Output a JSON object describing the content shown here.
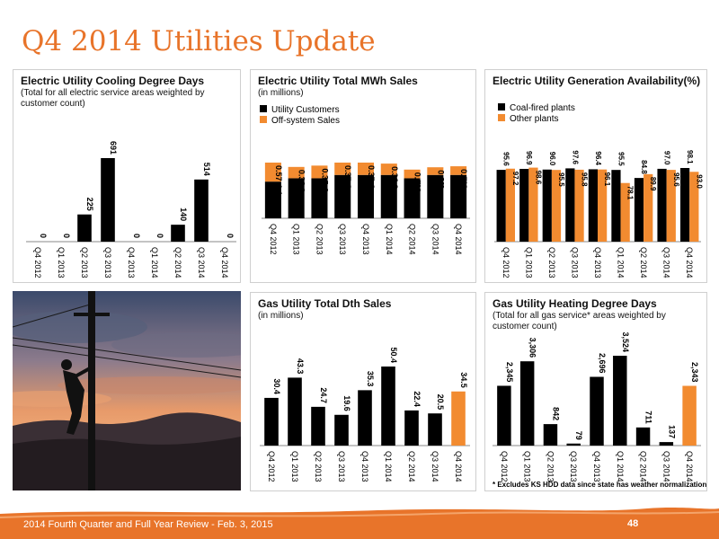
{
  "title": "Q4 2014 Utilities Update",
  "footer": {
    "text": "2014 Fourth Quarter and Full Year Review - Feb. 3, 2015",
    "page_number": "48"
  },
  "colors": {
    "accent": "#E8742A",
    "black": "#000000",
    "orange": "#F28B30"
  },
  "charts": {
    "cooling": {
      "title": "Electric Utility Cooling Degree Days",
      "subtitle": "(Total for all electric service areas weighted by customer count)"
    },
    "mwh": {
      "title": "Electric Utility Total MWh Sales",
      "subtitle": "(in millions)"
    },
    "gen": {
      "title": "Electric Utility Generation Availability(%)",
      "subtitle": ""
    },
    "dth": {
      "title": "Gas Utility Total Dth Sales",
      "subtitle": "(in millions)"
    },
    "hdd": {
      "title": "Gas Utility Heating Degree Days",
      "subtitle": "(Total for all gas service* areas weighted by customer count)",
      "footnote": "* Excludes KS HDD data since state has weather normalization"
    }
  },
  "chart_data": [
    {
      "id": "cooling",
      "type": "bar",
      "categories": [
        "Q4 2012",
        "Q1 2013",
        "Q2 2013",
        "Q3 2013",
        "Q4 2013",
        "Q1 2014",
        "Q2 2014",
        "Q3 2014",
        "Q4 2014"
      ],
      "values": [
        0,
        0,
        225,
        691,
        0,
        0,
        140,
        514,
        0
      ],
      "labels": [
        "0",
        "0",
        "225",
        "691",
        "0",
        "0",
        "140",
        "514",
        "0"
      ],
      "colors": [
        "#000000",
        "#000000",
        "#000000",
        "#000000",
        "#000000",
        "#000000",
        "#000000",
        "#000000",
        "#000000"
      ]
    },
    {
      "id": "mwh",
      "type": "bar",
      "stacked": true,
      "categories": [
        "Q4 2012",
        "Q1 2013",
        "Q2 2013",
        "Q3 2013",
        "Q4 2013",
        "Q1 2014",
        "Q2 2014",
        "Q3 2014",
        "Q4 2014"
      ],
      "legend": "top-left",
      "series": [
        {
          "name": "Utility Customers",
          "color": "#000000",
          "values": [
            1.1,
            1.2,
            1.2,
            1.3,
            1.3,
            1.3,
            1.2,
            1.3,
            1.3
          ],
          "labels": [
            "1.1",
            "1.2",
            "1.2",
            "1.3",
            "1.3",
            "1.3",
            "1.2",
            "1.3",
            "1.3"
          ]
        },
        {
          "name": "Off-system Sales",
          "color": "#F28B30",
          "values": [
            0.57,
            0.34,
            0.38,
            0.37,
            0.37,
            0.34,
            0.26,
            0.23,
            0.26
          ],
          "labels": [
            "0.57",
            "0.34",
            "0.38",
            "0.37",
            "0.37",
            "0.34",
            "0.26",
            "0.23",
            "0.26"
          ]
        }
      ]
    },
    {
      "id": "gen",
      "type": "bar",
      "grouped": true,
      "categories": [
        "Q4 2012",
        "Q1 2013",
        "Q2 2013",
        "Q3 2013",
        "Q4 2013",
        "Q1 2014",
        "Q2 2014",
        "Q3 2014",
        "Q4 2014"
      ],
      "legend": "top-left",
      "series": [
        {
          "name": "Coal-fired plants",
          "color": "#000000",
          "values": [
            95.6,
            96.9,
            96.0,
            97.6,
            96.4,
            95.5,
            84.8,
            97.0,
            98.1
          ],
          "labels": [
            "95.6",
            "96.9",
            "96.0",
            "97.6",
            "96.4",
            "95.5",
            "84.8",
            "97.0",
            "98.1"
          ]
        },
        {
          "name": "Other plants",
          "color": "#F28B30",
          "values": [
            97.2,
            98.6,
            95.5,
            95.8,
            96.1,
            78.1,
            89.9,
            95.6,
            93.0
          ],
          "labels": [
            "97.2",
            "98.6",
            "95.5",
            "95.8",
            "96.1",
            "78.1",
            "89.9",
            "95.6",
            "93.0"
          ]
        }
      ]
    },
    {
      "id": "dth",
      "type": "bar",
      "categories": [
        "Q4 2012",
        "Q1 2013",
        "Q2 2013",
        "Q3 2013",
        "Q4 2013",
        "Q1 2014",
        "Q2 2014",
        "Q3 2014",
        "Q4 2014"
      ],
      "values": [
        30.4,
        43.3,
        24.7,
        19.6,
        35.3,
        50.4,
        22.4,
        20.5,
        34.5
      ],
      "labels": [
        "30.4",
        "43.3",
        "24.7",
        "19.6",
        "35.3",
        "50.4",
        "22.4",
        "20.5",
        "34.5"
      ],
      "colors": [
        "#000000",
        "#000000",
        "#000000",
        "#000000",
        "#000000",
        "#000000",
        "#000000",
        "#000000",
        "#F28B30"
      ]
    },
    {
      "id": "hdd",
      "type": "bar",
      "categories": [
        "Q4 2012",
        "Q1 2013",
        "Q2 2013",
        "Q3 2013",
        "Q4 2013",
        "Q1 2014",
        "Q2 2014",
        "Q3 2014",
        "Q4 2014"
      ],
      "values": [
        2345,
        3306,
        842,
        79,
        2696,
        3524,
        711,
        137,
        2343
      ],
      "labels": [
        "2,345",
        "3,306",
        "842",
        "79",
        "2,696",
        "3,524",
        "711",
        "137",
        "2,343"
      ],
      "colors": [
        "#000000",
        "#000000",
        "#000000",
        "#000000",
        "#000000",
        "#000000",
        "#000000",
        "#000000",
        "#F28B30"
      ]
    }
  ]
}
